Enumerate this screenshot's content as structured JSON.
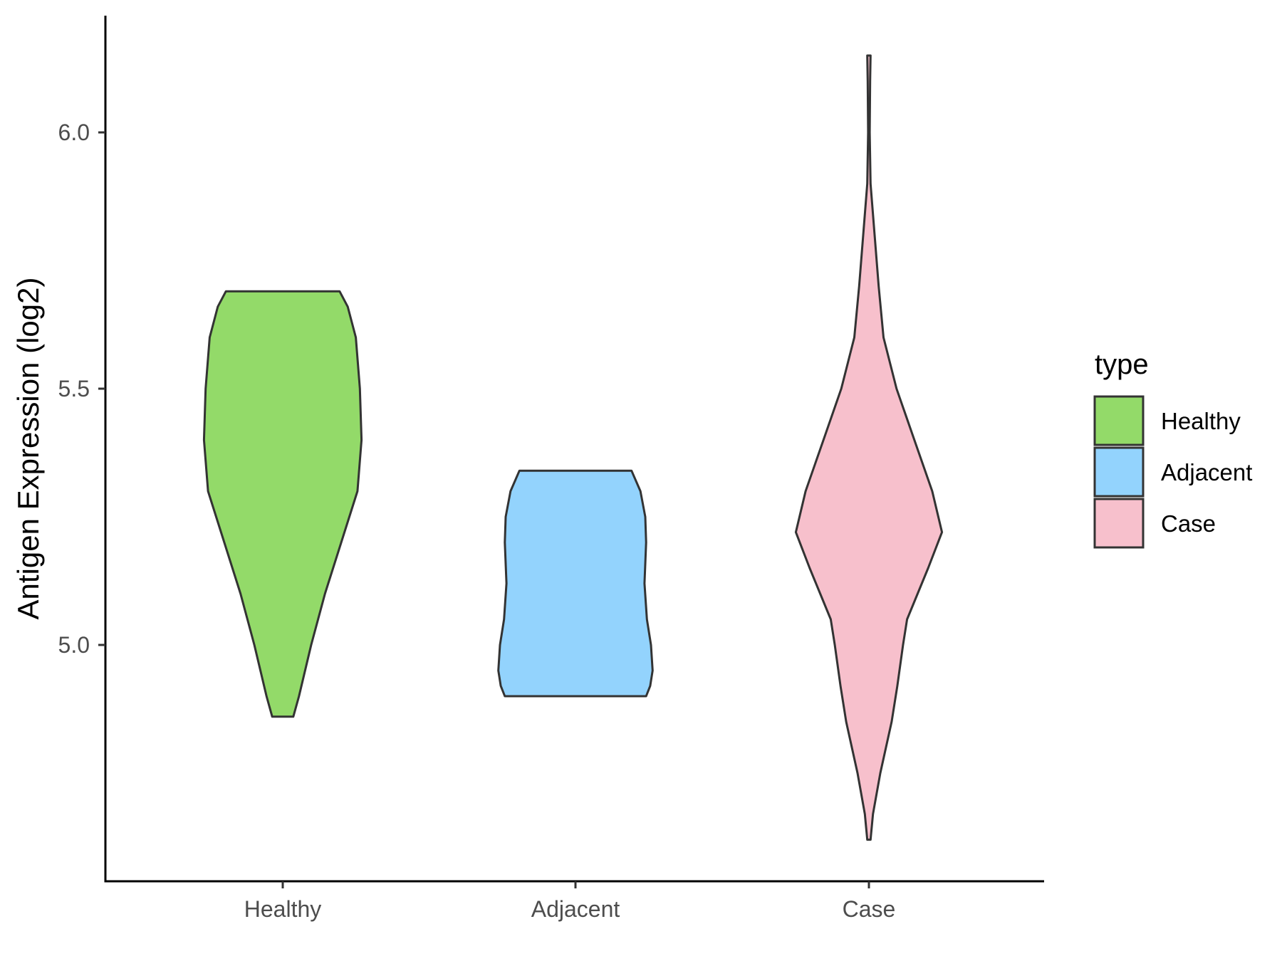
{
  "chart_data": {
    "type": "violin",
    "ylabel": "Antigen Expression (log2)",
    "xlabel": "",
    "y_ticks": [
      "5.0",
      "5.5",
      "6.0"
    ],
    "ylim": [
      4.58,
      6.23
    ],
    "legend": {
      "title": "type",
      "position": "right",
      "entries": [
        {
          "label": "Healthy",
          "color": "#93da69"
        },
        {
          "label": "Adjacent",
          "color": "#93d3fd"
        },
        {
          "label": "Case",
          "color": "#f7c0cc"
        }
      ]
    },
    "categories": [
      "Healthy",
      "Adjacent",
      "Case"
    ],
    "series": [
      {
        "name": "Healthy",
        "color": "#93da69",
        "profile": [
          [
            4.86,
            0.13
          ],
          [
            4.9,
            0.2
          ],
          [
            5.0,
            0.35
          ],
          [
            5.1,
            0.52
          ],
          [
            5.2,
            0.72
          ],
          [
            5.3,
            0.92
          ],
          [
            5.4,
            0.97
          ],
          [
            5.5,
            0.95
          ],
          [
            5.6,
            0.9
          ],
          [
            5.66,
            0.8
          ],
          [
            5.69,
            0.7
          ]
        ]
      },
      {
        "name": "Adjacent",
        "color": "#93d3fd",
        "profile": [
          [
            4.9,
            0.87
          ],
          [
            4.92,
            0.92
          ],
          [
            4.95,
            0.95
          ],
          [
            5.0,
            0.93
          ],
          [
            5.05,
            0.88
          ],
          [
            5.12,
            0.85
          ],
          [
            5.2,
            0.87
          ],
          [
            5.25,
            0.86
          ],
          [
            5.3,
            0.8
          ],
          [
            5.34,
            0.69
          ]
        ]
      },
      {
        "name": "Case",
        "color": "#f7c0cc",
        "profile": [
          [
            4.62,
            0.02
          ],
          [
            4.67,
            0.05
          ],
          [
            4.75,
            0.14
          ],
          [
            4.85,
            0.28
          ],
          [
            4.92,
            0.35
          ],
          [
            5.0,
            0.42
          ],
          [
            5.05,
            0.47
          ],
          [
            5.1,
            0.6
          ],
          [
            5.15,
            0.73
          ],
          [
            5.22,
            0.9
          ],
          [
            5.3,
            0.78
          ],
          [
            5.4,
            0.56
          ],
          [
            5.5,
            0.34
          ],
          [
            5.6,
            0.18
          ],
          [
            5.7,
            0.12
          ],
          [
            5.8,
            0.07
          ],
          [
            5.9,
            0.02
          ],
          [
            6.0,
            0.01
          ],
          [
            6.1,
            0.015
          ],
          [
            6.15,
            0.02
          ]
        ]
      }
    ]
  }
}
